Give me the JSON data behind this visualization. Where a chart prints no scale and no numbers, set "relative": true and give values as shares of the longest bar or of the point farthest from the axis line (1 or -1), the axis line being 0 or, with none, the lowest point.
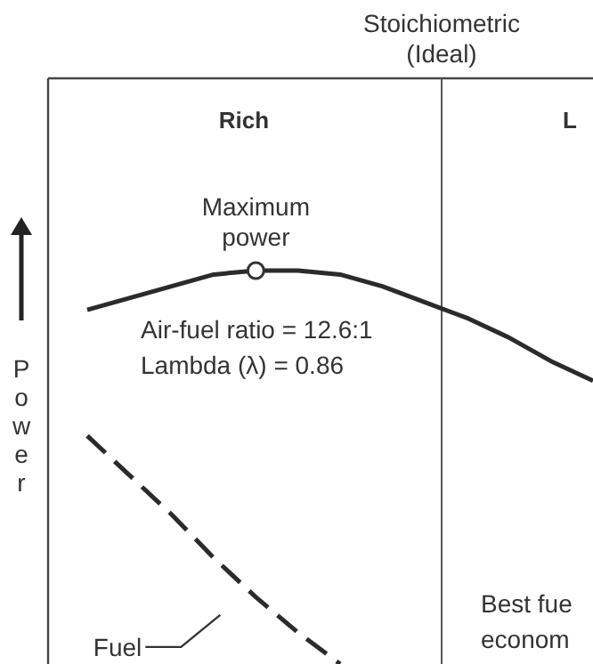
{
  "chart_data": {
    "type": "line",
    "relative": true,
    "ylabel": "Power",
    "marker": "none",
    "categories": [
      null,
      null,
      null,
      null,
      null,
      null,
      null,
      null,
      null,
      null,
      null,
      null,
      null
    ],
    "series": [
      {
        "color": "#2b2b2b",
        "line_style": "solid",
        "values": [
          0.9,
          0.93,
          0.96,
          0.99,
          1.0,
          1.0,
          0.99,
          0.96,
          0.92,
          0.88,
          0.83,
          0.77,
          0.72
        ]
      },
      {
        "name": "Fuel",
        "color": "#2b2b2b",
        "line_style": "dashed",
        "values": [
          0.58,
          0.48,
          0.38,
          0.27,
          0.17,
          0.08,
          0,
          null,
          null,
          null,
          null,
          null,
          null
        ]
      }
    ],
    "annotations": [
      "Maximum\npower",
      "Rich",
      "L",
      "Air-fuel ratio = 12.6:1\nLambda (λ) = 0.86",
      "Best fue\neconom",
      "Stoichiometric\n(Ideal)"
    ]
  }
}
